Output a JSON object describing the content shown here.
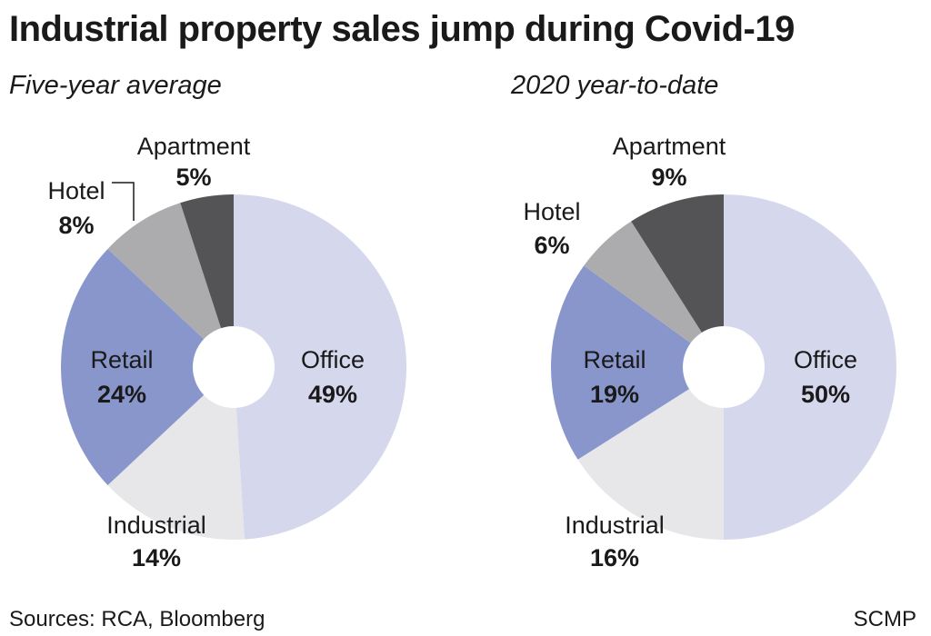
{
  "title": "Industrial property sales jump during Covid-19",
  "footer": {
    "sources": "Sources: RCA, Bloomberg",
    "credit": "SCMP"
  },
  "colors": {
    "Office": "#d5d8ed",
    "Industrial": "#e7e7ea",
    "Retail": "#8896cc",
    "Hotel": "#acacae",
    "Apartment": "#545456",
    "hole": "#ffffff"
  },
  "chart_data": [
    {
      "type": "pie",
      "subtitle": "Five-year average",
      "slices": [
        {
          "label": "Office",
          "value": 49,
          "display": "49%"
        },
        {
          "label": "Industrial",
          "value": 14,
          "display": "14%"
        },
        {
          "label": "Retail",
          "value": 24,
          "display": "24%"
        },
        {
          "label": "Hotel",
          "value": 8,
          "display": "8%"
        },
        {
          "label": "Apartment",
          "value": 5,
          "display": "5%"
        }
      ]
    },
    {
      "type": "pie",
      "subtitle": "2020 year-to-date",
      "slices": [
        {
          "label": "Office",
          "value": 50,
          "display": "50%"
        },
        {
          "label": "Industrial",
          "value": 16,
          "display": "16%"
        },
        {
          "label": "Retail",
          "value": 19,
          "display": "19%"
        },
        {
          "label": "Hotel",
          "value": 6,
          "display": "6%"
        },
        {
          "label": "Apartment",
          "value": 9,
          "display": "9%"
        }
      ]
    }
  ]
}
